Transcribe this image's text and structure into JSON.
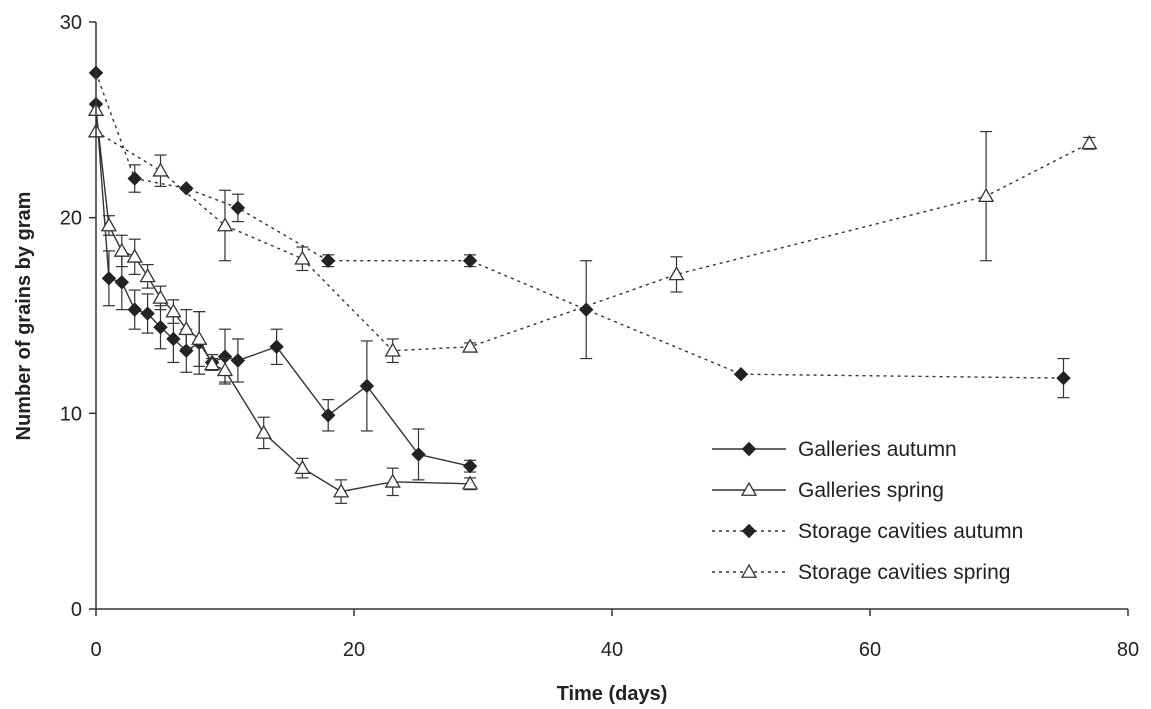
{
  "chart_data": {
    "type": "line",
    "xlabel": "Time (days)",
    "ylabel": "Number of grains by gram",
    "xlim": [
      0,
      80
    ],
    "ylim": [
      0,
      30
    ],
    "xticks": [
      0,
      20,
      40,
      60,
      80
    ],
    "yticks": [
      0,
      10,
      20,
      30
    ],
    "grid": false,
    "legend_position": "bottom-right",
    "series": [
      {
        "name": "Galleries autumn",
        "marker": "diamond",
        "line": "solid",
        "x": [
          0,
          1,
          2,
          3,
          4,
          5,
          6,
          7,
          8,
          9,
          10,
          11,
          14,
          18,
          21,
          25,
          29
        ],
        "y": [
          25.8,
          16.9,
          16.7,
          15.3,
          15.1,
          14.4,
          13.8,
          13.2,
          13.6,
          12.6,
          12.9,
          12.7,
          13.4,
          9.9,
          11.4,
          7.9,
          7.3
        ],
        "err": [
          0,
          1.4,
          1.4,
          1.0,
          1.0,
          1.1,
          1.2,
          1.1,
          1.6,
          0.4,
          1.4,
          1.1,
          0.9,
          0.8,
          2.3,
          1.3,
          0.3
        ]
      },
      {
        "name": "Galleries spring",
        "marker": "triangle",
        "line": "solid",
        "x": [
          0,
          1,
          2,
          3,
          4,
          5,
          6,
          7,
          8,
          9,
          10,
          13,
          16,
          19,
          23,
          29
        ],
        "y": [
          25.5,
          19.6,
          18.3,
          18.0,
          17.0,
          15.9,
          15.2,
          14.3,
          13.8,
          12.5,
          12.2,
          9.0,
          7.2,
          6.0,
          6.5,
          6.4
        ],
        "err": [
          0,
          0.5,
          0.8,
          0.9,
          0.6,
          0.6,
          0.6,
          1.0,
          1.4,
          0.3,
          0.6,
          0.8,
          0.5,
          0.6,
          0.7,
          0.3
        ]
      },
      {
        "name": "Storage cavities autumn",
        "marker": "diamond",
        "line": "dotted",
        "x": [
          0,
          3,
          7,
          11,
          18,
          29,
          38,
          50,
          75
        ],
        "y": [
          27.4,
          22.0,
          21.5,
          20.5,
          17.8,
          17.8,
          15.3,
          12.0,
          11.8
        ],
        "err": [
          0,
          0.7,
          0,
          0.7,
          0.3,
          0.3,
          2.5,
          0,
          1.0
        ]
      },
      {
        "name": "Storage cavities spring",
        "marker": "triangle",
        "line": "dotted",
        "x": [
          0,
          5,
          10,
          16,
          23,
          29,
          45,
          69,
          77
        ],
        "y": [
          24.4,
          22.4,
          19.6,
          17.9,
          13.2,
          13.4,
          17.1,
          21.1,
          23.8
        ],
        "err": [
          0,
          0.8,
          1.8,
          0.6,
          0.6,
          0.2,
          0.9,
          3.3,
          0.3
        ]
      }
    ]
  }
}
